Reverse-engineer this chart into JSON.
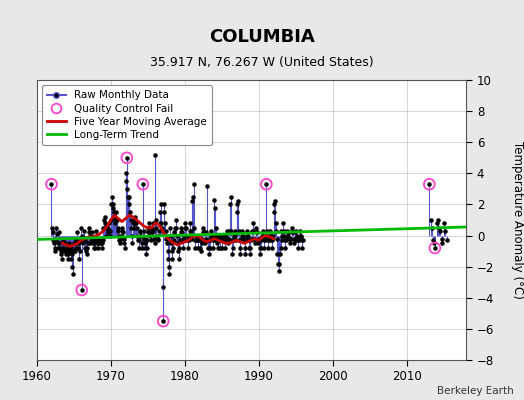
{
  "title": "COLUMBIA",
  "subtitle": "35.917 N, 76.267 W (United States)",
  "ylabel": "Temperature Anomaly (°C)",
  "attribution": "Berkeley Earth",
  "xlim": [
    1960,
    2018
  ],
  "ylim": [
    -8,
    10
  ],
  "yticks": [
    -8,
    -6,
    -4,
    -2,
    0,
    2,
    4,
    6,
    8,
    10
  ],
  "xticks": [
    1960,
    1970,
    1980,
    1990,
    2000,
    2010
  ],
  "bg_color": "#e8e8e8",
  "plot_bg_color": "#ffffff",
  "grid_color": "#c0c0c0",
  "raw_line_color": "#5555cc",
  "raw_dot_color": "#000000",
  "ma_color": "#cc0000",
  "trend_color": "#00bb00",
  "qc_color": "#ff44cc",
  "raw_monthly": [
    [
      1962.0,
      3.3
    ],
    [
      1962.08,
      0.5
    ],
    [
      1962.17,
      -0.3
    ],
    [
      1962.25,
      0.2
    ],
    [
      1962.33,
      -0.5
    ],
    [
      1962.42,
      -0.8
    ],
    [
      1962.5,
      -1.0
    ],
    [
      1962.58,
      -0.3
    ],
    [
      1962.67,
      0.5
    ],
    [
      1962.75,
      0.1
    ],
    [
      1962.83,
      -0.8
    ],
    [
      1962.92,
      -0.5
    ],
    [
      1963.0,
      0.2
    ],
    [
      1963.08,
      -0.5
    ],
    [
      1963.17,
      -0.8
    ],
    [
      1963.25,
      -1.2
    ],
    [
      1963.33,
      -1.0
    ],
    [
      1963.42,
      -1.5
    ],
    [
      1963.5,
      -0.8
    ],
    [
      1963.58,
      -0.3
    ],
    [
      1963.67,
      -0.5
    ],
    [
      1963.75,
      -1.0
    ],
    [
      1963.83,
      -0.5
    ],
    [
      1963.92,
      -1.2
    ],
    [
      1964.0,
      -0.8
    ],
    [
      1964.08,
      -1.0
    ],
    [
      1964.17,
      -1.5
    ],
    [
      1964.25,
      -1.2
    ],
    [
      1964.33,
      -0.8
    ],
    [
      1964.42,
      -0.5
    ],
    [
      1964.5,
      -1.0
    ],
    [
      1964.58,
      -1.5
    ],
    [
      1964.67,
      -0.8
    ],
    [
      1964.75,
      -1.2
    ],
    [
      1964.83,
      -2.0
    ],
    [
      1964.92,
      -2.5
    ],
    [
      1965.0,
      -1.0
    ],
    [
      1965.08,
      -0.5
    ],
    [
      1965.17,
      -1.0
    ],
    [
      1965.25,
      -0.8
    ],
    [
      1965.33,
      -0.3
    ],
    [
      1965.42,
      0.2
    ],
    [
      1965.5,
      -0.5
    ],
    [
      1965.58,
      -0.8
    ],
    [
      1965.67,
      -0.5
    ],
    [
      1965.75,
      -1.5
    ],
    [
      1965.83,
      -1.0
    ],
    [
      1965.92,
      -0.3
    ],
    [
      1966.0,
      0.5
    ],
    [
      1966.08,
      -3.5
    ],
    [
      1966.17,
      0.0
    ],
    [
      1966.25,
      -0.5
    ],
    [
      1966.33,
      -0.2
    ],
    [
      1966.42,
      0.3
    ],
    [
      1966.5,
      -0.3
    ],
    [
      1966.58,
      -0.8
    ],
    [
      1966.67,
      -1.0
    ],
    [
      1966.75,
      -1.2
    ],
    [
      1966.83,
      -0.8
    ],
    [
      1966.92,
      -0.5
    ],
    [
      1967.0,
      0.2
    ],
    [
      1967.08,
      0.5
    ],
    [
      1967.17,
      0.0
    ],
    [
      1967.25,
      -0.5
    ],
    [
      1967.33,
      -0.3
    ],
    [
      1967.42,
      0.2
    ],
    [
      1967.5,
      -0.2
    ],
    [
      1967.58,
      -0.5
    ],
    [
      1967.67,
      -0.8
    ],
    [
      1967.75,
      -0.5
    ],
    [
      1967.83,
      -0.2
    ],
    [
      1967.92,
      -0.8
    ],
    [
      1968.0,
      0.3
    ],
    [
      1968.08,
      -0.2
    ],
    [
      1968.17,
      -0.5
    ],
    [
      1968.25,
      -0.8
    ],
    [
      1968.33,
      -0.5
    ],
    [
      1968.42,
      -0.3
    ],
    [
      1968.5,
      -0.5
    ],
    [
      1968.58,
      -0.2
    ],
    [
      1968.67,
      -0.5
    ],
    [
      1968.75,
      -0.8
    ],
    [
      1968.83,
      -0.5
    ],
    [
      1968.92,
      -0.3
    ],
    [
      1969.0,
      0.5
    ],
    [
      1969.08,
      1.0
    ],
    [
      1969.17,
      0.8
    ],
    [
      1969.25,
      1.2
    ],
    [
      1969.33,
      0.5
    ],
    [
      1969.42,
      0.0
    ],
    [
      1969.5,
      0.5
    ],
    [
      1969.58,
      0.2
    ],
    [
      1969.67,
      0.5
    ],
    [
      1969.75,
      0.8
    ],
    [
      1969.83,
      0.3
    ],
    [
      1969.92,
      0.0
    ],
    [
      1970.0,
      1.0
    ],
    [
      1970.08,
      2.0
    ],
    [
      1970.17,
      2.5
    ],
    [
      1970.25,
      1.8
    ],
    [
      1970.33,
      2.0
    ],
    [
      1970.42,
      1.5
    ],
    [
      1970.5,
      1.2
    ],
    [
      1970.58,
      0.8
    ],
    [
      1970.67,
      1.0
    ],
    [
      1970.75,
      1.5
    ],
    [
      1970.83,
      1.0
    ],
    [
      1970.92,
      0.5
    ],
    [
      1971.0,
      0.3
    ],
    [
      1971.08,
      0.0
    ],
    [
      1971.17,
      -0.3
    ],
    [
      1971.25,
      -0.5
    ],
    [
      1971.33,
      -0.2
    ],
    [
      1971.42,
      0.0
    ],
    [
      1971.5,
      0.3
    ],
    [
      1971.58,
      0.5
    ],
    [
      1971.67,
      0.2
    ],
    [
      1971.75,
      -0.2
    ],
    [
      1971.83,
      -0.5
    ],
    [
      1971.92,
      -0.8
    ],
    [
      1972.0,
      3.5
    ],
    [
      1972.08,
      4.0
    ],
    [
      1972.17,
      5.0
    ],
    [
      1972.25,
      3.0
    ],
    [
      1972.33,
      2.5
    ],
    [
      1972.42,
      2.0
    ],
    [
      1972.5,
      2.5
    ],
    [
      1972.58,
      1.5
    ],
    [
      1972.67,
      1.0
    ],
    [
      1972.75,
      0.5
    ],
    [
      1972.83,
      0.0
    ],
    [
      1972.92,
      -0.5
    ],
    [
      1973.0,
      0.8
    ],
    [
      1973.08,
      1.0
    ],
    [
      1973.17,
      0.5
    ],
    [
      1973.25,
      0.8
    ],
    [
      1973.33,
      1.2
    ],
    [
      1973.42,
      0.8
    ],
    [
      1973.5,
      0.5
    ],
    [
      1973.58,
      0.0
    ],
    [
      1973.67,
      -0.3
    ],
    [
      1973.75,
      -0.8
    ],
    [
      1973.83,
      -0.3
    ],
    [
      1973.92,
      0.2
    ],
    [
      1974.0,
      0.3
    ],
    [
      1974.08,
      0.0
    ],
    [
      1974.17,
      -0.5
    ],
    [
      1974.25,
      -0.8
    ],
    [
      1974.33,
      3.3
    ],
    [
      1974.42,
      0.3
    ],
    [
      1974.5,
      -0.2
    ],
    [
      1974.58,
      -0.5
    ],
    [
      1974.67,
      -0.8
    ],
    [
      1974.75,
      -1.2
    ],
    [
      1974.83,
      -0.8
    ],
    [
      1974.92,
      -0.3
    ],
    [
      1975.0,
      0.2
    ],
    [
      1975.08,
      0.5
    ],
    [
      1975.17,
      0.8
    ],
    [
      1975.25,
      0.5
    ],
    [
      1975.33,
      0.0
    ],
    [
      1975.42,
      -0.3
    ],
    [
      1975.5,
      0.2
    ],
    [
      1975.58,
      0.5
    ],
    [
      1975.67,
      0.8
    ],
    [
      1975.75,
      0.3
    ],
    [
      1975.83,
      -0.2
    ],
    [
      1975.92,
      -0.5
    ],
    [
      1976.0,
      5.2
    ],
    [
      1976.08,
      1.0
    ],
    [
      1976.17,
      0.5
    ],
    [
      1976.25,
      0.0
    ],
    [
      1976.33,
      -0.3
    ],
    [
      1976.42,
      -0.2
    ],
    [
      1976.5,
      0.3
    ],
    [
      1976.58,
      0.8
    ],
    [
      1976.67,
      1.5
    ],
    [
      1976.75,
      2.0
    ],
    [
      1976.83,
      0.8
    ],
    [
      1976.92,
      0.5
    ],
    [
      1977.0,
      -3.3
    ],
    [
      1977.08,
      -5.5
    ],
    [
      1977.17,
      2.0
    ],
    [
      1977.25,
      1.5
    ],
    [
      1977.33,
      0.8
    ],
    [
      1977.42,
      0.3
    ],
    [
      1977.5,
      -0.2
    ],
    [
      1977.58,
      -0.5
    ],
    [
      1977.67,
      -1.0
    ],
    [
      1977.75,
      -1.5
    ],
    [
      1977.83,
      -2.0
    ],
    [
      1977.92,
      -2.5
    ],
    [
      1978.0,
      0.5
    ],
    [
      1978.08,
      0.0
    ],
    [
      1978.17,
      -0.5
    ],
    [
      1978.25,
      -1.0
    ],
    [
      1978.33,
      -1.5
    ],
    [
      1978.42,
      -0.8
    ],
    [
      1978.5,
      -0.3
    ],
    [
      1978.58,
      0.2
    ],
    [
      1978.67,
      0.5
    ],
    [
      1978.75,
      1.0
    ],
    [
      1978.83,
      0.5
    ],
    [
      1978.92,
      0.0
    ],
    [
      1979.0,
      -0.5
    ],
    [
      1979.08,
      -1.0
    ],
    [
      1979.17,
      -1.5
    ],
    [
      1979.25,
      -0.8
    ],
    [
      1979.33,
      -0.3
    ],
    [
      1979.42,
      0.2
    ],
    [
      1979.5,
      0.5
    ],
    [
      1979.58,
      0.2
    ],
    [
      1979.67,
      -0.3
    ],
    [
      1979.75,
      -0.8
    ],
    [
      1979.83,
      -0.3
    ],
    [
      1979.92,
      0.0
    ],
    [
      1980.0,
      0.5
    ],
    [
      1980.08,
      0.8
    ],
    [
      1980.17,
      0.5
    ],
    [
      1980.25,
      0.0
    ],
    [
      1980.33,
      -0.3
    ],
    [
      1980.42,
      -0.8
    ],
    [
      1980.5,
      -0.3
    ],
    [
      1980.58,
      0.0
    ],
    [
      1980.67,
      0.3
    ],
    [
      1980.75,
      0.8
    ],
    [
      1980.83,
      0.3
    ],
    [
      1980.92,
      -0.2
    ],
    [
      1981.0,
      2.2
    ],
    [
      1981.08,
      2.5
    ],
    [
      1981.17,
      3.3
    ],
    [
      1981.25,
      0.5
    ],
    [
      1981.33,
      -0.3
    ],
    [
      1981.42,
      -0.8
    ],
    [
      1981.5,
      -0.3
    ],
    [
      1981.58,
      0.0
    ],
    [
      1981.67,
      -0.3
    ],
    [
      1981.75,
      -0.8
    ],
    [
      1981.83,
      -0.3
    ],
    [
      1981.92,
      0.0
    ],
    [
      1982.0,
      -0.3
    ],
    [
      1982.08,
      -0.8
    ],
    [
      1982.17,
      -1.0
    ],
    [
      1982.25,
      -0.5
    ],
    [
      1982.33,
      -0.2
    ],
    [
      1982.42,
      0.2
    ],
    [
      1982.5,
      0.5
    ],
    [
      1982.58,
      0.2
    ],
    [
      1982.67,
      -0.3
    ],
    [
      1982.75,
      -0.5
    ],
    [
      1982.83,
      -0.2
    ],
    [
      1982.92,
      0.2
    ],
    [
      1983.0,
      3.2
    ],
    [
      1983.08,
      -0.3
    ],
    [
      1983.17,
      -0.8
    ],
    [
      1983.25,
      -1.2
    ],
    [
      1983.33,
      -0.8
    ],
    [
      1983.42,
      -0.3
    ],
    [
      1983.5,
      0.0
    ],
    [
      1983.58,
      0.3
    ],
    [
      1983.67,
      0.0
    ],
    [
      1983.75,
      -0.3
    ],
    [
      1983.83,
      -0.8
    ],
    [
      1983.92,
      -0.3
    ],
    [
      1984.0,
      2.3
    ],
    [
      1984.08,
      1.8
    ],
    [
      1984.17,
      0.5
    ],
    [
      1984.25,
      0.0
    ],
    [
      1984.33,
      -0.5
    ],
    [
      1984.42,
      -0.8
    ],
    [
      1984.5,
      -0.3
    ],
    [
      1984.58,
      0.0
    ],
    [
      1984.67,
      -0.3
    ],
    [
      1984.75,
      -0.8
    ],
    [
      1984.83,
      -0.3
    ],
    [
      1984.92,
      0.0
    ],
    [
      1985.0,
      -0.3
    ],
    [
      1985.08,
      -0.8
    ],
    [
      1985.17,
      -0.3
    ],
    [
      1985.25,
      0.0
    ],
    [
      1985.33,
      -0.3
    ],
    [
      1985.42,
      -0.8
    ],
    [
      1985.5,
      -0.3
    ],
    [
      1985.58,
      0.0
    ],
    [
      1985.67,
      0.3
    ],
    [
      1985.75,
      -0.2
    ],
    [
      1985.83,
      -0.5
    ],
    [
      1985.92,
      -0.2
    ],
    [
      1986.0,
      0.3
    ],
    [
      1986.08,
      2.0
    ],
    [
      1986.17,
      2.5
    ],
    [
      1986.25,
      0.3
    ],
    [
      1986.33,
      -0.3
    ],
    [
      1986.42,
      -1.2
    ],
    [
      1986.5,
      -0.8
    ],
    [
      1986.58,
      -0.3
    ],
    [
      1986.67,
      0.0
    ],
    [
      1986.75,
      0.3
    ],
    [
      1986.83,
      0.0
    ],
    [
      1986.92,
      -0.3
    ],
    [
      1987.0,
      2.0
    ],
    [
      1987.08,
      1.5
    ],
    [
      1987.17,
      2.2
    ],
    [
      1987.25,
      0.3
    ],
    [
      1987.33,
      -0.3
    ],
    [
      1987.42,
      -1.2
    ],
    [
      1987.5,
      -0.8
    ],
    [
      1987.58,
      -0.3
    ],
    [
      1987.67,
      0.0
    ],
    [
      1987.75,
      0.3
    ],
    [
      1987.83,
      0.0
    ],
    [
      1987.92,
      -0.3
    ],
    [
      1988.0,
      -0.3
    ],
    [
      1988.08,
      -1.2
    ],
    [
      1988.17,
      -0.8
    ],
    [
      1988.25,
      -0.3
    ],
    [
      1988.33,
      0.0
    ],
    [
      1988.42,
      0.3
    ],
    [
      1988.5,
      0.0
    ],
    [
      1988.58,
      -0.3
    ],
    [
      1988.67,
      -0.8
    ],
    [
      1988.75,
      -1.2
    ],
    [
      1988.83,
      -0.8
    ],
    [
      1988.92,
      -0.3
    ],
    [
      1989.0,
      -0.2
    ],
    [
      1989.08,
      0.3
    ],
    [
      1989.17,
      0.8
    ],
    [
      1989.25,
      0.3
    ],
    [
      1989.33,
      -0.2
    ],
    [
      1989.42,
      -0.5
    ],
    [
      1989.5,
      -0.2
    ],
    [
      1989.58,
      0.2
    ],
    [
      1989.67,
      0.5
    ],
    [
      1989.75,
      0.2
    ],
    [
      1989.83,
      -0.2
    ],
    [
      1989.92,
      -0.5
    ],
    [
      1990.0,
      -0.3
    ],
    [
      1990.08,
      -0.8
    ],
    [
      1990.17,
      -1.2
    ],
    [
      1990.25,
      -0.8
    ],
    [
      1990.33,
      -0.3
    ],
    [
      1990.42,
      0.0
    ],
    [
      1990.5,
      0.3
    ],
    [
      1990.58,
      0.0
    ],
    [
      1990.67,
      -0.3
    ],
    [
      1990.75,
      -0.8
    ],
    [
      1990.83,
      -0.3
    ],
    [
      1990.92,
      0.0
    ],
    [
      1991.0,
      3.3
    ],
    [
      1991.08,
      0.3
    ],
    [
      1991.17,
      -0.3
    ],
    [
      1991.25,
      -0.8
    ],
    [
      1991.33,
      -0.3
    ],
    [
      1991.42,
      0.0
    ],
    [
      1991.5,
      0.3
    ],
    [
      1991.58,
      0.0
    ],
    [
      1991.67,
      -0.3
    ],
    [
      1991.75,
      -0.8
    ],
    [
      1991.83,
      -0.3
    ],
    [
      1991.92,
      0.0
    ],
    [
      1992.0,
      2.0
    ],
    [
      1992.08,
      1.5
    ],
    [
      1992.17,
      2.2
    ],
    [
      1992.25,
      0.8
    ],
    [
      1992.33,
      0.3
    ],
    [
      1992.42,
      -0.2
    ],
    [
      1992.5,
      -1.2
    ],
    [
      1992.58,
      -1.8
    ],
    [
      1992.67,
      -2.3
    ],
    [
      1992.75,
      -1.8
    ],
    [
      1992.83,
      -1.2
    ],
    [
      1992.92,
      -0.8
    ],
    [
      1993.0,
      0.3
    ],
    [
      1993.08,
      0.0
    ],
    [
      1993.17,
      -0.3
    ],
    [
      1993.25,
      0.8
    ],
    [
      1993.33,
      0.3
    ],
    [
      1993.42,
      0.0
    ],
    [
      1993.5,
      -0.3
    ],
    [
      1993.58,
      -0.8
    ],
    [
      1993.67,
      -0.3
    ],
    [
      1993.75,
      0.0
    ],
    [
      1993.83,
      0.3
    ],
    [
      1993.92,
      0.0
    ],
    [
      1994.0,
      -0.2
    ],
    [
      1994.08,
      0.2
    ],
    [
      1994.17,
      -0.2
    ],
    [
      1994.25,
      -0.5
    ],
    [
      1994.33,
      -0.2
    ],
    [
      1994.42,
      0.2
    ],
    [
      1994.5,
      0.5
    ],
    [
      1994.58,
      0.2
    ],
    [
      1994.67,
      -0.2
    ],
    [
      1994.75,
      -0.5
    ],
    [
      1994.83,
      -0.2
    ],
    [
      1994.92,
      0.2
    ],
    [
      1995.0,
      0.3
    ],
    [
      1995.08,
      -0.3
    ],
    [
      1995.17,
      0.0
    ],
    [
      1995.25,
      -0.3
    ],
    [
      1995.33,
      -0.8
    ],
    [
      1995.42,
      -0.3
    ],
    [
      1995.5,
      0.0
    ],
    [
      1995.58,
      0.3
    ],
    [
      1995.67,
      0.0
    ],
    [
      1995.75,
      -0.3
    ],
    [
      1995.83,
      -0.8
    ],
    [
      1995.92,
      -0.3
    ],
    [
      2013.0,
      3.3
    ],
    [
      2013.17,
      1.0
    ],
    [
      2013.33,
      0.5
    ],
    [
      2013.5,
      -0.3
    ],
    [
      2013.67,
      -0.5
    ],
    [
      2013.75,
      -0.8
    ],
    [
      2014.0,
      0.8
    ],
    [
      2014.17,
      1.0
    ],
    [
      2014.33,
      0.5
    ],
    [
      2014.5,
      0.3
    ],
    [
      2014.67,
      -0.2
    ],
    [
      2014.75,
      -0.5
    ],
    [
      2015.0,
      0.8
    ],
    [
      2015.17,
      0.3
    ],
    [
      2015.33,
      -0.3
    ]
  ],
  "qc_fail_points": [
    [
      1962.0,
      3.3
    ],
    [
      1966.08,
      -3.5
    ],
    [
      1972.17,
      5.0
    ],
    [
      1974.33,
      3.3
    ],
    [
      1977.08,
      -5.5
    ],
    [
      1991.0,
      3.3
    ],
    [
      2013.0,
      3.3
    ],
    [
      2013.75,
      -0.8
    ]
  ],
  "moving_avg": [
    [
      1963.5,
      -0.5
    ],
    [
      1964.0,
      -0.6
    ],
    [
      1964.5,
      -0.7
    ],
    [
      1965.0,
      -0.6
    ],
    [
      1965.5,
      -0.5
    ],
    [
      1966.0,
      -0.3
    ],
    [
      1966.5,
      -0.2
    ],
    [
      1967.0,
      -0.1
    ],
    [
      1967.5,
      -0.1
    ],
    [
      1968.0,
      0.0
    ],
    [
      1968.5,
      0.1
    ],
    [
      1969.0,
      0.3
    ],
    [
      1969.5,
      0.6
    ],
    [
      1970.0,
      1.0
    ],
    [
      1970.5,
      1.3
    ],
    [
      1971.0,
      1.1
    ],
    [
      1971.5,
      0.9
    ],
    [
      1972.0,
      1.1
    ],
    [
      1972.5,
      1.3
    ],
    [
      1973.0,
      1.2
    ],
    [
      1973.5,
      1.0
    ],
    [
      1974.0,
      0.8
    ],
    [
      1974.5,
      0.6
    ],
    [
      1975.0,
      0.5
    ],
    [
      1975.5,
      0.5
    ],
    [
      1976.0,
      0.8
    ],
    [
      1976.5,
      0.7
    ],
    [
      1977.0,
      0.3
    ],
    [
      1977.5,
      -0.1
    ],
    [
      1978.0,
      -0.3
    ],
    [
      1978.5,
      -0.5
    ],
    [
      1979.0,
      -0.6
    ],
    [
      1979.5,
      -0.5
    ],
    [
      1980.0,
      -0.4
    ],
    [
      1980.5,
      -0.3
    ],
    [
      1981.0,
      -0.1
    ],
    [
      1981.5,
      0.0
    ],
    [
      1982.0,
      -0.1
    ],
    [
      1982.5,
      -0.3
    ],
    [
      1983.0,
      -0.4
    ],
    [
      1983.5,
      -0.3
    ],
    [
      1984.0,
      -0.2
    ],
    [
      1984.5,
      -0.3
    ],
    [
      1985.0,
      -0.4
    ],
    [
      1985.5,
      -0.5
    ],
    [
      1986.0,
      -0.5
    ],
    [
      1986.5,
      -0.4
    ],
    [
      1987.0,
      -0.3
    ],
    [
      1987.5,
      -0.4
    ],
    [
      1988.0,
      -0.5
    ],
    [
      1988.5,
      -0.4
    ],
    [
      1989.0,
      -0.3
    ],
    [
      1989.5,
      -0.2
    ],
    [
      1990.0,
      -0.3
    ],
    [
      1990.5,
      -0.1
    ],
    [
      1991.0,
      0.0
    ],
    [
      1991.5,
      -0.1
    ],
    [
      1992.0,
      -0.2
    ]
  ],
  "trend_line": [
    [
      1960,
      -0.25
    ],
    [
      2018,
      0.55
    ]
  ]
}
